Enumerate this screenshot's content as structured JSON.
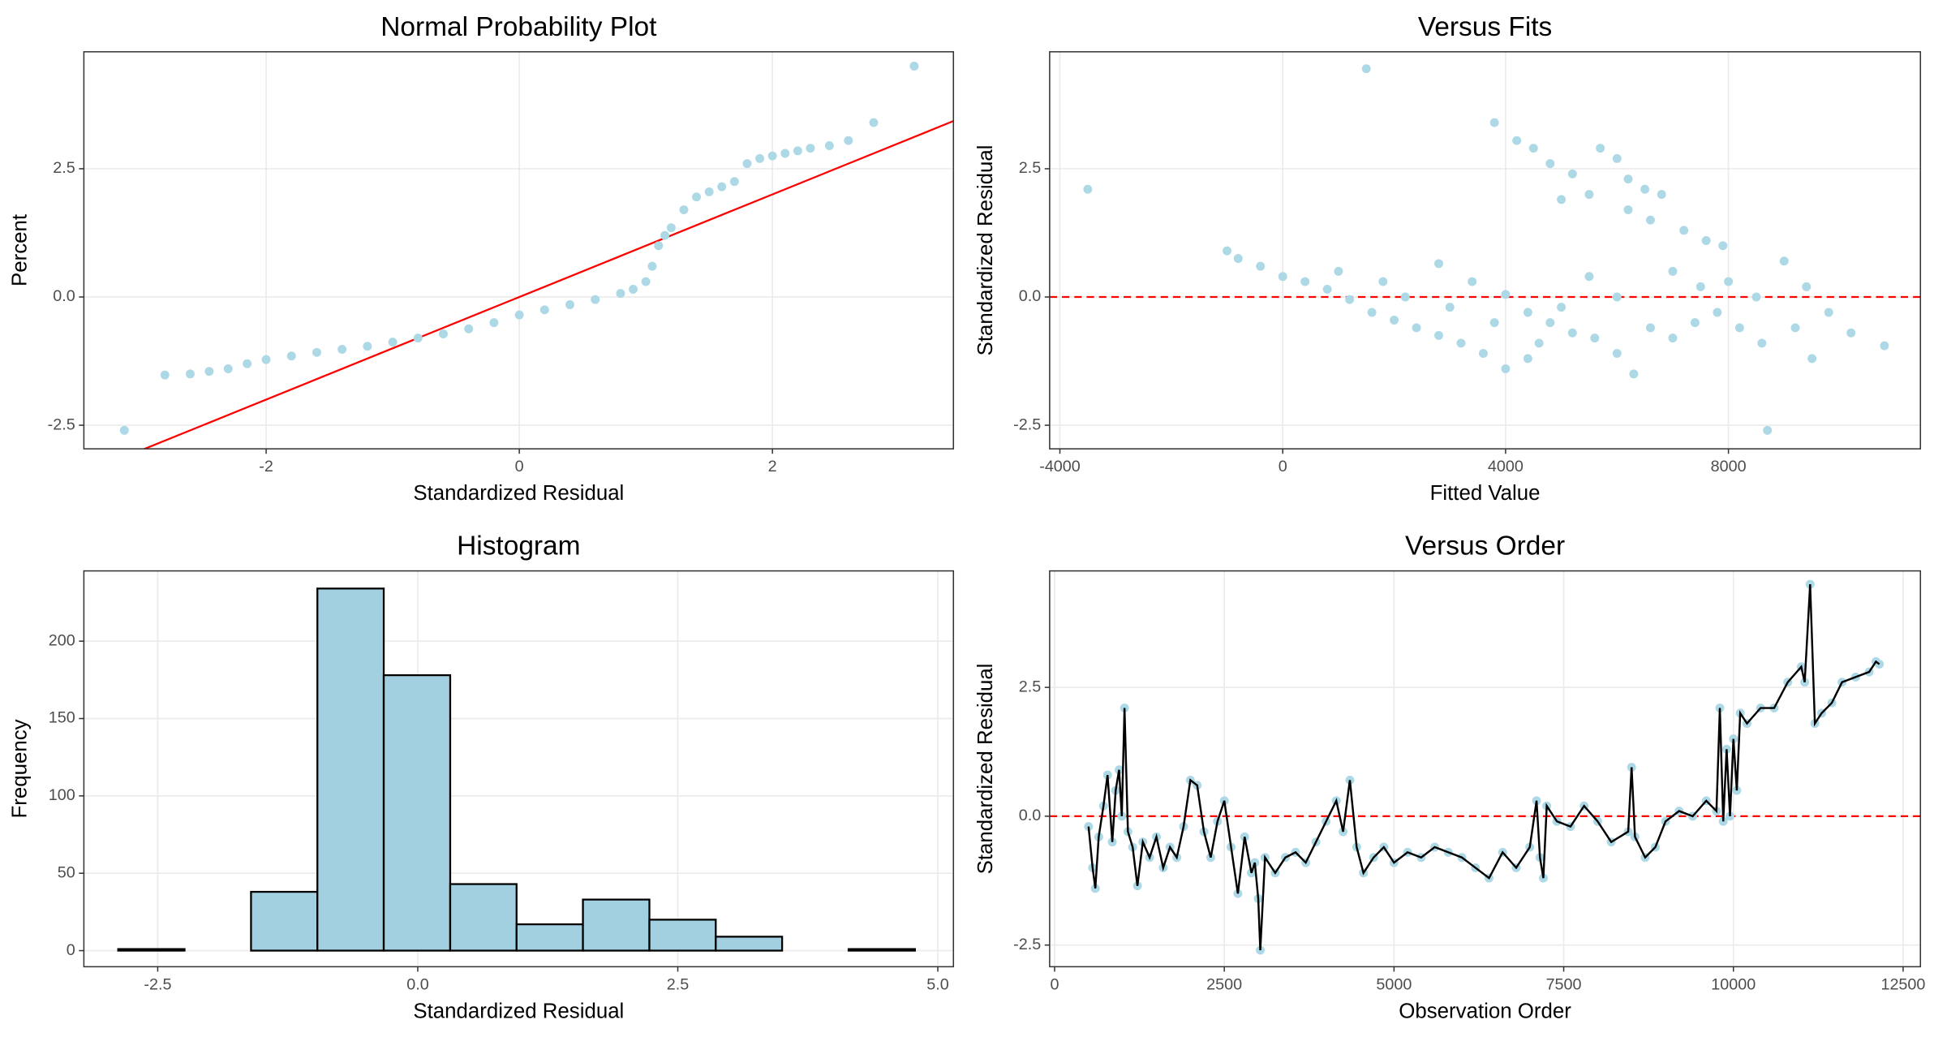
{
  "chart_data": [
    {
      "type": "scatter",
      "title": "Normal Probability Plot",
      "xlabel": "Standardized Residual",
      "ylabel": "Percent",
      "xlim": [
        -3.44,
        3.43
      ],
      "ylim": [
        -2.96,
        4.78
      ],
      "xticks": [
        -2,
        0,
        2
      ],
      "yticks": [
        -2.5,
        {
          "value": 0,
          "label": "0.0"
        },
        2.5
      ],
      "grid": true,
      "color": "#add8e6",
      "reference_line": {
        "slope": 1,
        "intercept": 0,
        "color": "#ff0000"
      },
      "x": [
        -3.12,
        -2.8,
        -2.6,
        -2.45,
        -2.3,
        -2.15,
        -2.0,
        -1.8,
        -1.6,
        -1.4,
        -1.2,
        -1.0,
        -0.8,
        -0.6,
        -0.4,
        -0.2,
        0,
        0.2,
        0.4,
        0.6,
        0.8,
        0.9,
        1.0,
        1.05,
        1.1,
        1.15,
        1.2,
        1.3,
        1.4,
        1.5,
        1.6,
        1.7,
        1.8,
        1.9,
        2.0,
        2.1,
        2.2,
        2.3,
        2.45,
        2.6,
        2.8,
        3.12
      ],
      "y": [
        -2.6,
        -1.52,
        -1.5,
        -1.45,
        -1.4,
        -1.3,
        -1.22,
        -1.15,
        -1.08,
        -1.02,
        -0.96,
        -0.88,
        -0.8,
        -0.72,
        -0.62,
        -0.5,
        -0.35,
        -0.25,
        -0.15,
        -0.05,
        0.07,
        0.15,
        0.3,
        0.6,
        1.0,
        1.2,
        1.35,
        1.7,
        1.95,
        2.05,
        2.15,
        2.25,
        2.6,
        2.7,
        2.75,
        2.8,
        2.85,
        2.9,
        2.95,
        3.05,
        3.4,
        4.5
      ]
    },
    {
      "type": "scatter",
      "title": "Versus Fits",
      "xlabel": "Fitted Value",
      "ylabel": "Standardized Residual",
      "xlim": [
        -4184,
        11446
      ],
      "ylim": [
        -2.96,
        4.78
      ],
      "xticks": [
        -4000,
        0,
        4000,
        8000
      ],
      "yticks": [
        -2.5,
        {
          "value": 0,
          "label": "0.0"
        },
        2.5
      ],
      "grid": true,
      "color": "#add8e6",
      "reference_y": {
        "value": 0,
        "color": "#ff0000"
      },
      "x": [
        -3500,
        1500,
        3800,
        4200,
        4500,
        4800,
        5200,
        5700,
        6000,
        6200,
        6500,
        6800,
        6200,
        6600,
        7200,
        7600,
        7900,
        5000,
        5500,
        -1000,
        -800,
        -400,
        0,
        400,
        800,
        1200,
        1600,
        2000,
        2400,
        2800,
        3200,
        3600,
        4000,
        4400,
        1000,
        1800,
        2200,
        2800,
        3400,
        4000,
        4400,
        4800,
        5200,
        5600,
        6000,
        6300,
        6600,
        7000,
        7400,
        7800,
        8200,
        8600,
        9000,
        9400,
        9800,
        10200,
        10800,
        9500,
        8700,
        8000,
        7000,
        6000,
        5000,
        3000,
        5500,
        7500,
        8500,
        9200,
        4600,
        3800
      ],
      "y": [
        2.1,
        4.45,
        3.4,
        3.05,
        2.9,
        2.6,
        2.4,
        2.9,
        2.7,
        2.3,
        2.1,
        2.0,
        1.7,
        1.5,
        1.3,
        1.1,
        1.0,
        1.9,
        2.0,
        0.9,
        0.75,
        0.6,
        0.4,
        0.3,
        0.15,
        -0.05,
        -0.3,
        -0.45,
        -0.6,
        -0.75,
        -0.9,
        -1.1,
        -1.4,
        -1.2,
        0.5,
        0.3,
        0.0,
        0.65,
        0.3,
        0.05,
        -0.3,
        -0.5,
        -0.7,
        -0.8,
        -1.1,
        -1.5,
        -0.6,
        -0.8,
        -0.5,
        -0.3,
        -0.6,
        -0.9,
        0.7,
        0.2,
        -0.3,
        -0.7,
        -0.95,
        -1.2,
        -2.6,
        0.3,
        0.5,
        0.0,
        -0.2,
        -0.2,
        0.4,
        0.2,
        0.0,
        -0.6,
        -0.9,
        -0.5
      ]
    },
    {
      "type": "histogram",
      "title": "Histogram",
      "xlabel": "Standardized Residual",
      "ylabel": "Frequency",
      "xlim": [
        -3.21,
        5.15
      ],
      "ylim": [
        -10.4,
        245.4
      ],
      "xticks": [
        -2.5,
        {
          "value": 0,
          "label": "0.0"
        },
        2.5,
        {
          "value": 5,
          "label": "5.0"
        }
      ],
      "yticks": [
        0,
        50,
        100,
        150,
        200
      ],
      "grid": true,
      "color": "#a3d0e1",
      "edge_color": "#000000",
      "bins": [
        -2.88,
        -2.242,
        -1.603,
        -0.965,
        -0.327,
        0.312,
        0.95,
        1.588,
        2.227,
        2.865,
        3.503,
        4.142,
        4.78
      ],
      "counts": [
        1,
        0,
        38,
        234,
        178,
        43,
        17,
        33,
        20,
        9,
        0,
        1
      ]
    },
    {
      "type": "line",
      "title": "Versus Order",
      "xlabel": "Observation Order",
      "ylabel": "Standardized Residual",
      "xlim": [
        -73,
        12755
      ],
      "ylim": [
        -2.92,
        4.76
      ],
      "xticks": [
        0,
        2500,
        5000,
        7500,
        10000,
        12500
      ],
      "yticks": [
        -2.5,
        {
          "value": 0,
          "label": "0.0"
        },
        2.5
      ],
      "grid": true,
      "color": "#000000",
      "marker_color": "#add8e6",
      "reference_y": {
        "value": 0,
        "color": "#ff0000"
      },
      "x": [
        500,
        560,
        600,
        650,
        720,
        780,
        850,
        900,
        950,
        990,
        1030,
        1080,
        1150,
        1220,
        1300,
        1400,
        1500,
        1600,
        1700,
        1800,
        1900,
        2000,
        2100,
        2200,
        2300,
        2400,
        2500,
        2600,
        2700,
        2800,
        2900,
        2950,
        3000,
        3030,
        3100,
        3250,
        3400,
        3550,
        3700,
        3850,
        4000,
        4150,
        4250,
        4350,
        4450,
        4550,
        4700,
        4850,
        5000,
        5200,
        5400,
        5600,
        5800,
        6000,
        6200,
        6400,
        6600,
        6800,
        7000,
        7100,
        7150,
        7200,
        7250,
        7400,
        7600,
        7800,
        8000,
        8200,
        8450,
        8500,
        8550,
        8700,
        8850,
        9000,
        9200,
        9400,
        9600,
        9750,
        9800,
        9850,
        9900,
        9950,
        10000,
        10050,
        10100,
        10200,
        10400,
        10600,
        10800,
        11000,
        11050,
        11130,
        11200,
        11300,
        11450,
        11600,
        11800,
        12000,
        12100,
        12150
      ],
      "y": [
        -0.2,
        -1.0,
        -1.4,
        -0.4,
        0.2,
        0.8,
        -0.5,
        0.5,
        0.9,
        0.0,
        2.1,
        -0.3,
        -0.6,
        -1.35,
        -0.5,
        -0.8,
        -0.4,
        -1.0,
        -0.6,
        -0.8,
        -0.2,
        0.7,
        0.6,
        -0.3,
        -0.8,
        -0.1,
        0.3,
        -0.6,
        -1.5,
        -0.4,
        -1.1,
        -0.9,
        -1.6,
        -2.6,
        -0.8,
        -1.1,
        -0.8,
        -0.7,
        -0.9,
        -0.5,
        -0.1,
        0.3,
        -0.3,
        0.7,
        -0.6,
        -1.1,
        -0.8,
        -0.6,
        -0.9,
        -0.7,
        -0.8,
        -0.6,
        -0.7,
        -0.8,
        -1.0,
        -1.2,
        -0.7,
        -1.0,
        -0.6,
        0.3,
        -0.8,
        -1.2,
        0.2,
        -0.1,
        -0.2,
        0.2,
        -0.1,
        -0.5,
        -0.3,
        0.95,
        -0.4,
        -0.8,
        -0.6,
        -0.1,
        0.1,
        0.0,
        0.3,
        0.1,
        2.1,
        -0.1,
        1.3,
        0.0,
        1.5,
        0.5,
        2.0,
        1.8,
        2.1,
        2.1,
        2.6,
        2.9,
        2.6,
        4.5,
        1.8,
        2.0,
        2.2,
        2.6,
        2.7,
        2.8,
        3.0,
        2.95
      ]
    }
  ]
}
